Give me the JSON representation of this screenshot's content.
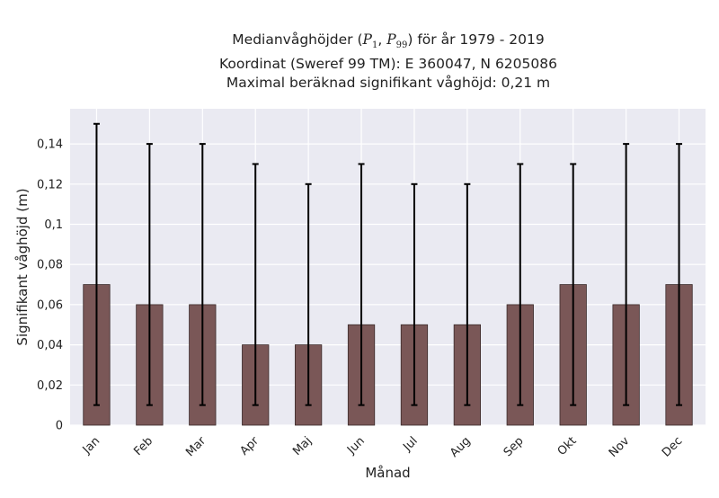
{
  "chart_data": {
    "type": "bar",
    "title_lines": {
      "line1_prefix": "Medianvåghöjder (",
      "p_low": "P",
      "p_low_sub": "1",
      "sep": ", ",
      "p_high": "P",
      "p_high_sub": "99",
      "line1_suffix": ") för år 1979 - 2019",
      "line2": "Koordinat (Sweref 99 TM): E 360047, N 6205086",
      "line3": "Maximal beräknad signifikant våghöjd: 0,21 m"
    },
    "xlabel": "Månad",
    "ylabel": "Signifikant våghöjd (m)",
    "categories": [
      "Jan",
      "Feb",
      "Mar",
      "Apr",
      "Maj",
      "Jun",
      "Jul",
      "Aug",
      "Sep",
      "Okt",
      "Nov",
      "Dec"
    ],
    "values": [
      0.07,
      0.06,
      0.06,
      0.04,
      0.04,
      0.05,
      0.05,
      0.05,
      0.06,
      0.07,
      0.06,
      0.07
    ],
    "error_low": [
      0.01,
      0.01,
      0.01,
      0.01,
      0.01,
      0.01,
      0.01,
      0.01,
      0.01,
      0.01,
      0.01,
      0.01
    ],
    "error_high": [
      0.15,
      0.14,
      0.14,
      0.13,
      0.12,
      0.13,
      0.12,
      0.12,
      0.13,
      0.13,
      0.14,
      0.14
    ],
    "yticks": [
      0,
      0.02,
      0.04,
      0.06,
      0.08,
      0.1,
      0.12,
      0.14
    ],
    "ytick_labels": [
      "0",
      "0,02",
      "0,04",
      "0,06",
      "0,08",
      "0,1",
      "0,12",
      "0,14"
    ],
    "ylim": [
      0,
      0.1575
    ],
    "grid": true,
    "colors": {
      "bar": "#7a5757",
      "bar_edge": "#3a2a2a",
      "errorbar": "#000000",
      "plot_bg": "#eaeaf2",
      "grid": "#ffffff",
      "text": "#222222"
    }
  }
}
